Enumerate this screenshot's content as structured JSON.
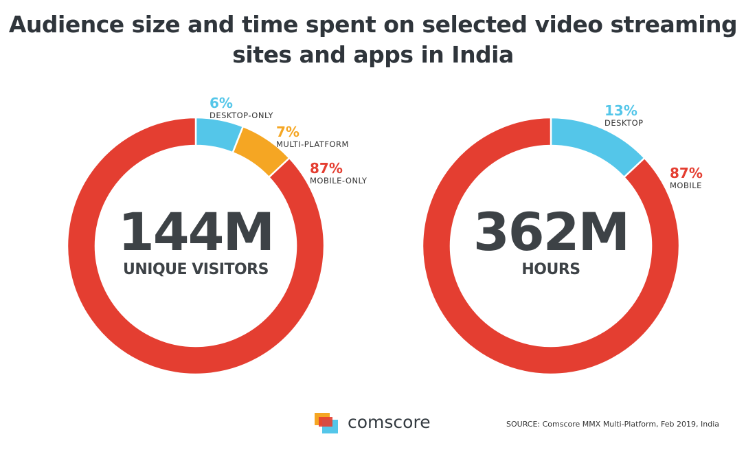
{
  "title": "Audience size and time spent on selected video streaming sites and apps in India",
  "colors": {
    "mobile": "#e43e31",
    "desktop": "#54c6e9",
    "multi": "#f5a623",
    "text": "#3d4246"
  },
  "chart_data": [
    {
      "type": "pie",
      "center_value": "144M",
      "center_label": "UNIQUE VISITORS",
      "slices": [
        {
          "label": "DESKTOP-ONLY",
          "value": 6,
          "pct_text": "6%",
          "color": "#54c6e9"
        },
        {
          "label": "MULTI-PLATFORM",
          "value": 7,
          "pct_text": "7%",
          "color": "#f5a623"
        },
        {
          "label": "MOBILE-ONLY",
          "value": 87,
          "pct_text": "87%",
          "color": "#e43e31"
        }
      ]
    },
    {
      "type": "pie",
      "center_value": "362M",
      "center_label": "HOURS",
      "slices": [
        {
          "label": "DESKTOP",
          "value": 13,
          "pct_text": "13%",
          "color": "#54c6e9"
        },
        {
          "label": "MOBILE",
          "value": 87,
          "pct_text": "87%",
          "color": "#e43e31"
        }
      ]
    }
  ],
  "footer": {
    "logo_text": "comscore",
    "source": "SOURCE: Comscore MMX Multi-Platform, Feb 2019, India"
  }
}
